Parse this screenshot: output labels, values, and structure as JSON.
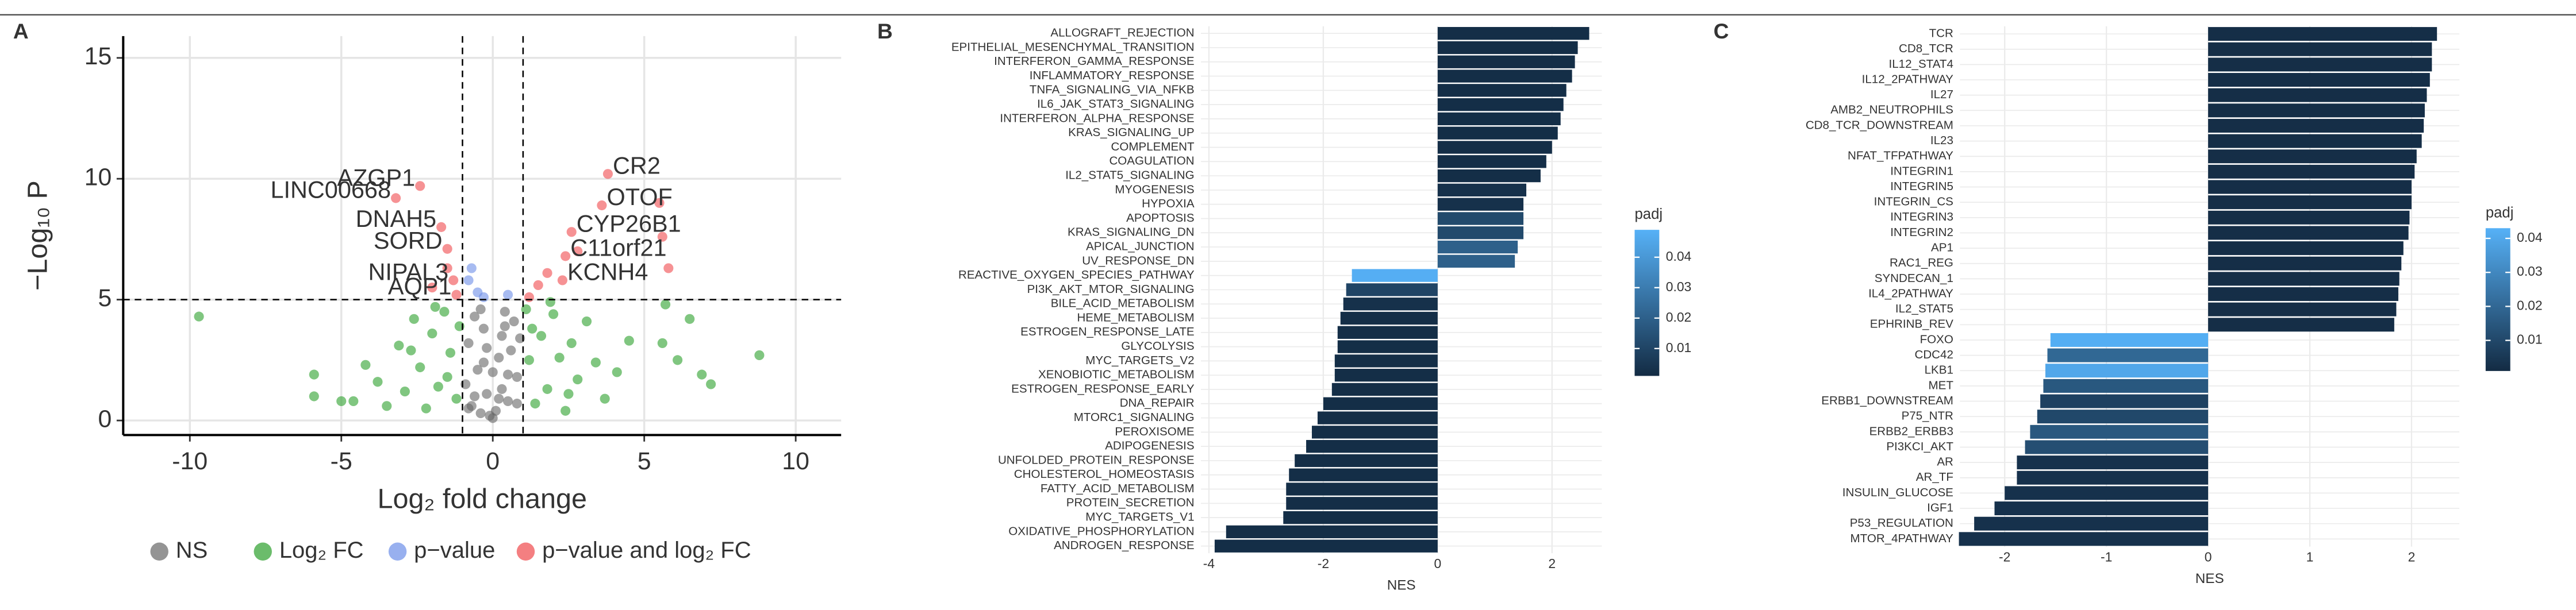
{
  "chart_data": [
    {
      "type": "scatter",
      "panel": "A",
      "x_label": "Log₂ fold change",
      "y_label": "−Log₁₀ P",
      "xlim": [
        -12.2,
        11.5
      ],
      "ylim": [
        -0.6,
        15.9
      ],
      "xticks": [
        -10,
        -5,
        0,
        5,
        10
      ],
      "yticks": [
        0,
        5,
        10,
        15
      ],
      "grid": true,
      "vlines": [
        -1,
        1
      ],
      "hline": 5,
      "series": [
        {
          "name": "NS",
          "color": "#666666",
          "x": [
            -0.9,
            -0.8,
            -0.7,
            -0.6,
            -0.5,
            -0.4,
            -0.3,
            -0.2,
            -0.1,
            0,
            0.1,
            0.2,
            0.3,
            0.4,
            0.5,
            0.6,
            0.7,
            0.8,
            0.9,
            -0.6,
            -0.3,
            0.2,
            0.5,
            -0.8,
            0.8,
            -0.4,
            0.4,
            0,
            -0.2,
            0.3
          ],
          "y": [
            1.5,
            3.2,
            0.6,
            4.3,
            2.1,
            0.3,
            3.8,
            1.1,
            0.2,
            0.1,
            0.4,
            2.6,
            1.3,
            3.9,
            0.8,
            2.9,
            4.1,
            1.8,
            3.4,
            1.0,
            2.4,
            0.9,
            1.9,
            0.5,
            0.7,
            4.6,
            4.5,
            2.0,
            3.0,
            3.5
          ]
        },
        {
          "name": "Log₂ FC",
          "color": "#2ca02c",
          "x": [
            -9.7,
            -5.9,
            -5.9,
            -5,
            -4.6,
            -4.2,
            -3.8,
            -3.5,
            -3.1,
            -2.9,
            -2.6,
            -2.4,
            -2.2,
            -2,
            -1.8,
            -1.6,
            -1.4,
            -1.2,
            -1.1,
            -2.7,
            -1.9,
            -1.5,
            1.1,
            1.2,
            1.4,
            1.6,
            1.8,
            2,
            2.2,
            2.4,
            2.6,
            2.8,
            3.1,
            3.4,
            3.7,
            4.1,
            4.5,
            5.6,
            5.7,
            6.1,
            6.5,
            6.9,
            7.2,
            8.8,
            1.3,
            1.9,
            2.5
          ],
          "y": [
            4.3,
            1.9,
            1,
            0.8,
            0.8,
            2.3,
            1.6,
            0.6,
            3.1,
            1.2,
            4.2,
            2.2,
            0.5,
            3.6,
            1.4,
            4.5,
            2.8,
            0.9,
            3.9,
            2.9,
            4.7,
            1.8,
            4.6,
            2.5,
            0.7,
            3.5,
            1.3,
            4.4,
            2.6,
            0.4,
            3.2,
            1.7,
            4.1,
            2.4,
            0.9,
            2,
            3.3,
            3.2,
            4.8,
            2.5,
            4.2,
            1.9,
            1.5,
            2.7,
            3.8,
            4.9,
            1.1
          ]
        },
        {
          "name": "p−value",
          "color": "#6c8ee8",
          "x": [
            -0.8,
            -0.5,
            -0.3,
            0.5,
            -0.7
          ],
          "y": [
            5.8,
            5.3,
            5.1,
            5.2,
            6.3
          ]
        },
        {
          "name": "p−value and log₂ FC",
          "color": "#f0494c",
          "x": [
            -3.2,
            -2.4,
            -1.7,
            -1.5,
            -1.3,
            -1.2,
            -1.5,
            3.8,
            3.6,
            2.6,
            2.4,
            2.3,
            5.5,
            5.6,
            5.8,
            1.5,
            1.8,
            2.8,
            -2,
            1.2
          ],
          "y": [
            9.2,
            9.7,
            8,
            7.1,
            5.8,
            5.2,
            6.3,
            10.2,
            8.9,
            7.8,
            6.8,
            5.8,
            9,
            7.6,
            6.3,
            5.6,
            6.1,
            7,
            5.5,
            5.1
          ]
        }
      ],
      "annotations": [
        {
          "text": "LINC00668",
          "x": -3.2,
          "y": 9.2
        },
        {
          "text": "AZGP1",
          "x": -2.4,
          "y": 9.7
        },
        {
          "text": "DNAH5",
          "x": -1.7,
          "y": 8
        },
        {
          "text": "SORD",
          "x": -1.5,
          "y": 7.1
        },
        {
          "text": "NIPAL3",
          "x": -1.3,
          "y": 5.8
        },
        {
          "text": "AQP1",
          "x": -1.2,
          "y": 5.2
        },
        {
          "text": "CR2",
          "x": 3.8,
          "y": 10.2
        },
        {
          "text": "OTOF",
          "x": 3.6,
          "y": 8.9
        },
        {
          "text": "CYP26B1",
          "x": 2.6,
          "y": 7.8
        },
        {
          "text": "C11orf21",
          "x": 2.4,
          "y": 6.8
        },
        {
          "text": "KCNH4",
          "x": 2.3,
          "y": 5.8
        }
      ]
    },
    {
      "type": "hbar",
      "panel": "B",
      "x_label": "NES",
      "xlim": [
        -4.14,
        2.87
      ],
      "xticks": [
        -4,
        -2,
        0,
        2
      ],
      "grid": true,
      "legend_title": "padj",
      "color_low": "#132B43",
      "color_high": "#56B1F7",
      "padj_lim": [
        0.001,
        0.049
      ],
      "padj_ticks": [
        0.01,
        0.02,
        0.03,
        0.04
      ],
      "categories": [
        "ALLOGRAFT_REJECTION",
        "EPITHELIAL_MESENCHYMAL_TRANSITION",
        "INTERFERON_GAMMA_RESPONSE",
        "INFLAMMATORY_RESPONSE",
        "TNFA_SIGNALING_VIA_NFKB",
        "IL6_JAK_STAT3_SIGNALING",
        "INTERFERON_ALPHA_RESPONSE",
        "KRAS_SIGNALING_UP",
        "COMPLEMENT",
        "COAGULATION",
        "IL2_STAT5_SIGNALING",
        "MYOGENESIS",
        "HYPOXIA",
        "APOPTOSIS",
        "KRAS_SIGNALING_DN",
        "APICAL_JUNCTION",
        "UV_RESPONSE_DN",
        "REACTIVE_OXYGEN_SPECIES_PATHWAY",
        "PI3K_AKT_MTOR_SIGNALING",
        "BILE_ACID_METABOLISM",
        "HEME_METABOLISM",
        "ESTROGEN_RESPONSE_LATE",
        "GLYCOLYSIS",
        "MYC_TARGETS_V2",
        "XENOBIOTIC_METABOLISM",
        "ESTROGEN_RESPONSE_EARLY",
        "DNA_REPAIR",
        "MTORC1_SIGNALING",
        "PEROXISOME",
        "ADIPOGENESIS",
        "UNFOLDED_PROTEIN_RESPONSE",
        "CHOLESTEROL_HOMEOSTASIS",
        "FATTY_ACID_METABOLISM",
        "PROTEIN_SECRETION",
        "MYC_TARGETS_V1",
        "OXIDATIVE_PHOSPHORYLATION",
        "ANDROGEN_RESPONSE"
      ],
      "values": [
        2.65,
        2.45,
        2.4,
        2.35,
        2.25,
        2.2,
        2.15,
        2.1,
        2,
        1.9,
        1.8,
        1.55,
        1.5,
        1.5,
        1.5,
        1.4,
        1.35,
        -1.5,
        -1.6,
        -1.65,
        -1.7,
        -1.75,
        -1.75,
        -1.8,
        -1.8,
        -1.85,
        -2,
        -2.1,
        -2.2,
        -2.3,
        -2.5,
        -2.6,
        -2.65,
        -2.65,
        -2.7,
        -3.7,
        -3.9
      ],
      "padj": [
        0.002,
        0.002,
        0.002,
        0.002,
        0.002,
        0.002,
        0.002,
        0.002,
        0.002,
        0.002,
        0.002,
        0.003,
        0.003,
        0.012,
        0.012,
        0.02,
        0.02,
        0.048,
        0.01,
        0.003,
        0.002,
        0.002,
        0.002,
        0.002,
        0.002,
        0.002,
        0.002,
        0.002,
        0.002,
        0.002,
        0.002,
        0.002,
        0.002,
        0.002,
        0.002,
        0.002,
        0.002
      ]
    },
    {
      "type": "hbar",
      "panel": "C",
      "x_label": "NES",
      "xlim": [
        -2.44,
        2.47
      ],
      "xticks": [
        -2,
        -1,
        0,
        1,
        2
      ],
      "grid": true,
      "legend_title": "padj",
      "color_low": "#132B43",
      "color_high": "#56B1F7",
      "padj_lim": [
        0.001,
        0.043
      ],
      "padj_ticks": [
        0.01,
        0.02,
        0.03,
        0.04
      ],
      "categories": [
        "TCR",
        "CD8_TCR",
        "IL12_STAT4",
        "IL12_2PATHWAY",
        "IL27",
        "AMB2_NEUTROPHILS",
        "CD8_TCR_DOWNSTREAM",
        "IL23",
        "NFAT_TFPATHWAY",
        "INTEGRIN1",
        "INTEGRIN5",
        "INTEGRIN_CS",
        "INTEGRIN3",
        "INTEGRIN2",
        "AP1",
        "RAC1_REG",
        "SYNDECAN_1",
        "IL4_2PATHWAY",
        "IL2_STAT5",
        "EPHRINB_REV",
        "FOXO",
        "CDC42",
        "LKB1",
        "MET",
        "ERBB1_DOWNSTREAM",
        "P75_NTR",
        "ERBB2_ERBB3",
        "PI3KCI_AKT",
        "AR",
        "AR_TF",
        "INSULIN_GLUCOSE",
        "IGF1",
        "P53_REGULATION",
        "MTOR_4PATHWAY"
      ],
      "values": [
        2.25,
        2.2,
        2.2,
        2.18,
        2.15,
        2.13,
        2.12,
        2.1,
        2.05,
        2.03,
        2,
        2,
        1.98,
        1.97,
        1.92,
        1.9,
        1.88,
        1.87,
        1.85,
        1.83,
        -1.55,
        -1.58,
        -1.6,
        -1.62,
        -1.65,
        -1.68,
        -1.75,
        -1.8,
        -1.88,
        -1.88,
        -2,
        -2.1,
        -2.3,
        -2.45
      ],
      "padj": [
        0.002,
        0.002,
        0.002,
        0.002,
        0.002,
        0.002,
        0.002,
        0.002,
        0.002,
        0.002,
        0.002,
        0.002,
        0.002,
        0.002,
        0.002,
        0.002,
        0.002,
        0.002,
        0.002,
        0.002,
        0.042,
        0.02,
        0.04,
        0.015,
        0.008,
        0.01,
        0.015,
        0.012,
        0.003,
        0.003,
        0.003,
        0.003,
        0.003,
        0.003
      ]
    }
  ]
}
